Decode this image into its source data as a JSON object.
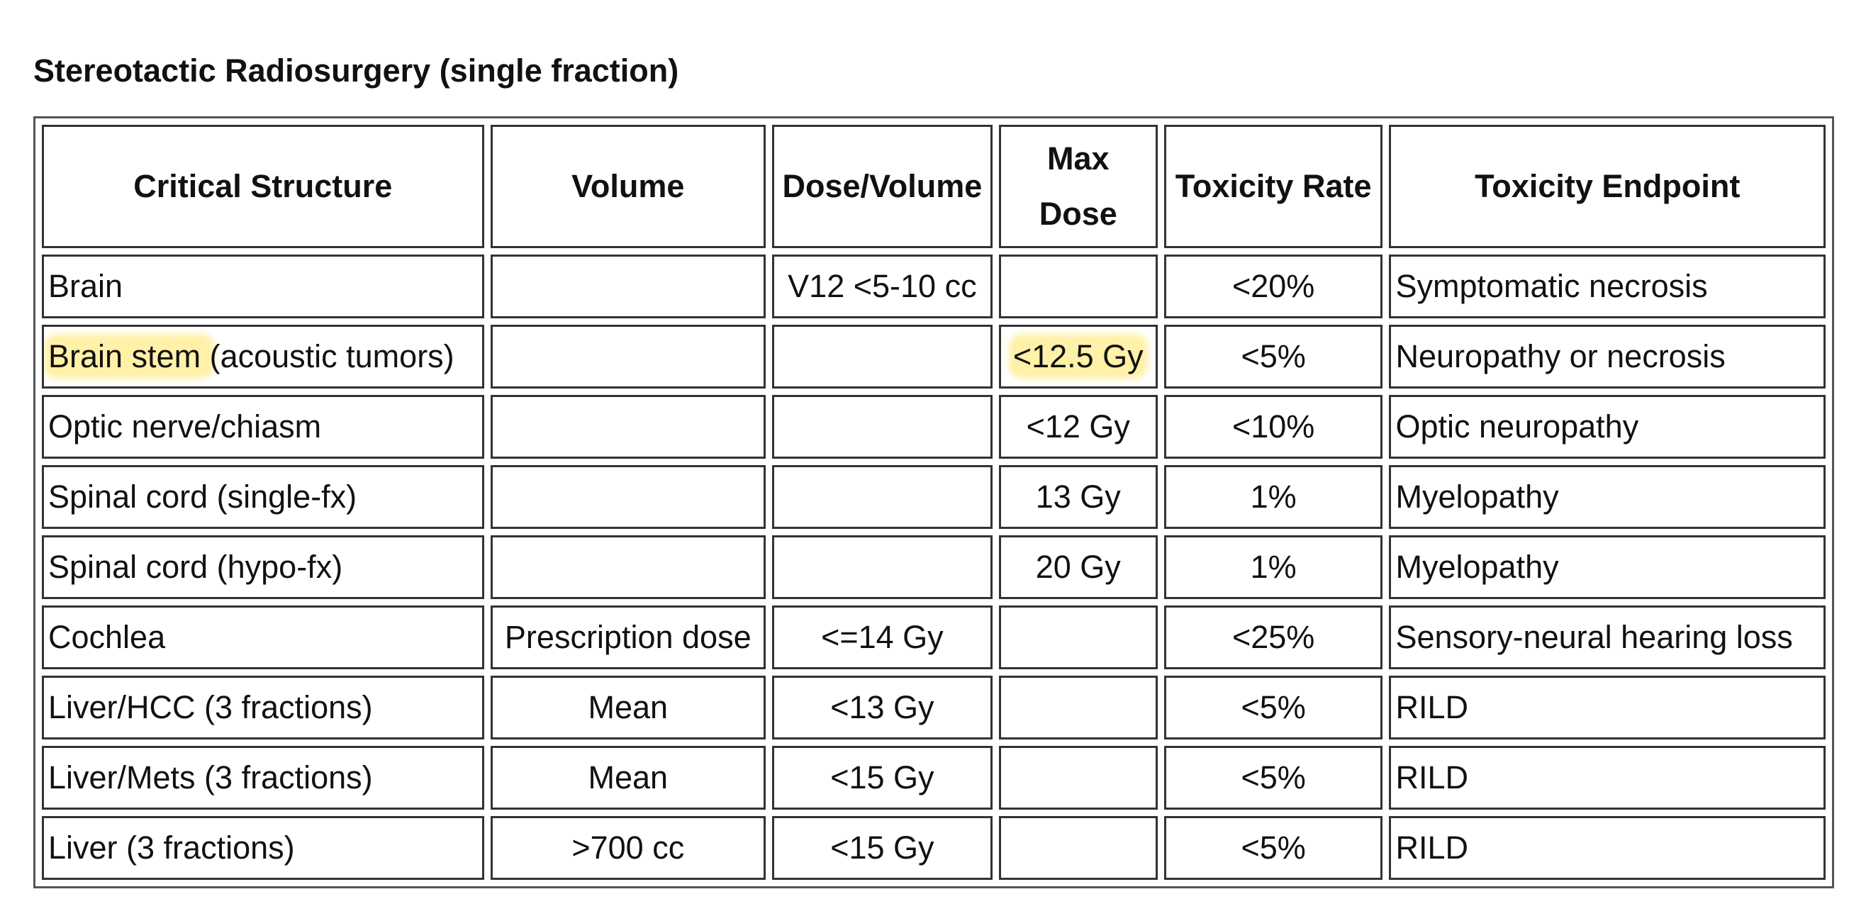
{
  "title": "Stereotactic Radiosurgery (single fraction)",
  "headers": {
    "structure": "Critical Structure",
    "volume": "Volume",
    "dose_volume": "Dose/Volume",
    "max_dose_line1": "Max",
    "max_dose_line2": "Dose",
    "toxicity_rate": "Toxicity Rate",
    "toxicity_endpoint": "Toxicity Endpoint"
  },
  "rows": [
    {
      "structure": "Brain",
      "volume": "",
      "dose_volume": "V12 <5-10 cc",
      "max_dose": "",
      "toxicity_rate": "<20%",
      "endpoint": "Symptomatic necrosis"
    },
    {
      "structure_highlight": "Brain stem ",
      "structure_rest": "(acoustic tumors)",
      "volume": "",
      "dose_volume": "",
      "max_dose": "<12.5 Gy",
      "toxicity_rate": "<5%",
      "endpoint": "Neuropathy or necrosis"
    },
    {
      "structure": "Optic nerve/chiasm",
      "volume": "",
      "dose_volume": "",
      "max_dose": "<12 Gy",
      "toxicity_rate": "<10%",
      "endpoint": "Optic neuropathy"
    },
    {
      "structure": "Spinal cord (single-fx)",
      "volume": "",
      "dose_volume": "",
      "max_dose": "13 Gy",
      "toxicity_rate": "1%",
      "endpoint": "Myelopathy"
    },
    {
      "structure": "Spinal cord (hypo-fx)",
      "volume": "",
      "dose_volume": "",
      "max_dose": "20 Gy",
      "toxicity_rate": "1%",
      "endpoint": "Myelopathy"
    },
    {
      "structure": "Cochlea",
      "volume": "Prescription dose",
      "dose_volume": "<=14 Gy",
      "max_dose": "",
      "toxicity_rate": "<25%",
      "endpoint": "Sensory-neural hearing loss"
    },
    {
      "structure": "Liver/HCC (3 fractions)",
      "volume": "Mean",
      "dose_volume": "<13 Gy",
      "max_dose": "",
      "toxicity_rate": "<5%",
      "endpoint": "RILD"
    },
    {
      "structure": "Liver/Mets (3 fractions)",
      "volume": "Mean",
      "dose_volume": "<15 Gy",
      "max_dose": "",
      "toxicity_rate": "<5%",
      "endpoint": "RILD"
    },
    {
      "structure": "Liver (3 fractions)",
      "volume": ">700 cc",
      "dose_volume": "<15 Gy",
      "max_dose": "",
      "toxicity_rate": "<5%",
      "endpoint": "RILD"
    }
  ],
  "colors": {
    "highlight": "#fff1a8"
  }
}
